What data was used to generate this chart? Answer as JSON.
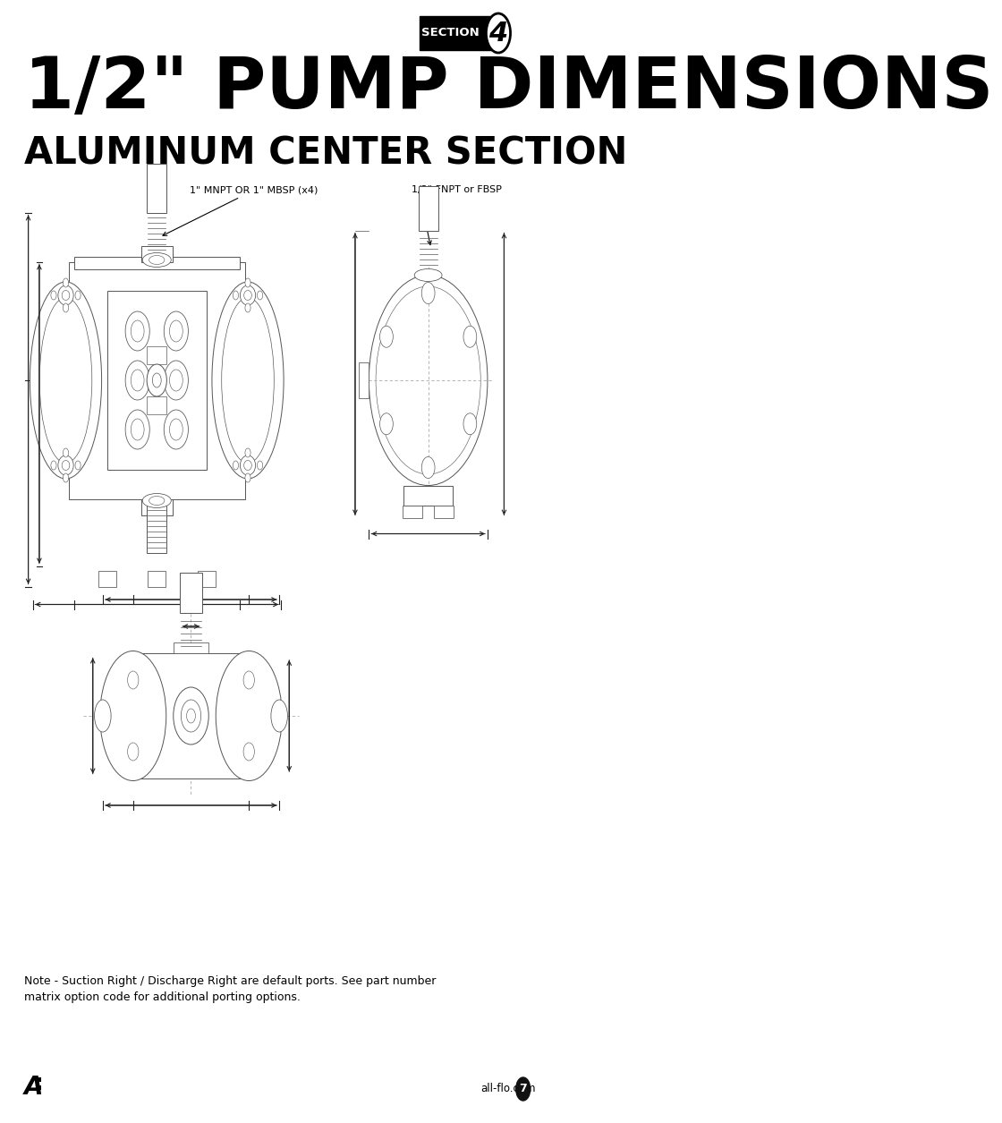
{
  "bg_color": "#ffffff",
  "title_main": "1/2\" PUMP DIMENSIONS",
  "title_sub": "ALUMINUM CENTER SECTION",
  "section_label": "SECTION",
  "section_number": "4",
  "label_top_left": "1\" MNPT OR 1\" MBSP (x4)",
  "label_top_right": "1/2\" FNPT or FBSP",
  "note_line1": "Note - Suction Right / Discharge Right are default ports. See part number",
  "note_line2": "matrix option code for additional porting options.",
  "footer_url": "all-flo.com",
  "footer_page": "7",
  "title_fontsize": 58,
  "subtitle_fontsize": 30,
  "label_fontsize": 8,
  "note_fontsize": 9,
  "draw_color": "#555555",
  "draw_lw": 0.7,
  "dim_color": "#222222",
  "dim_lw": 0.8
}
